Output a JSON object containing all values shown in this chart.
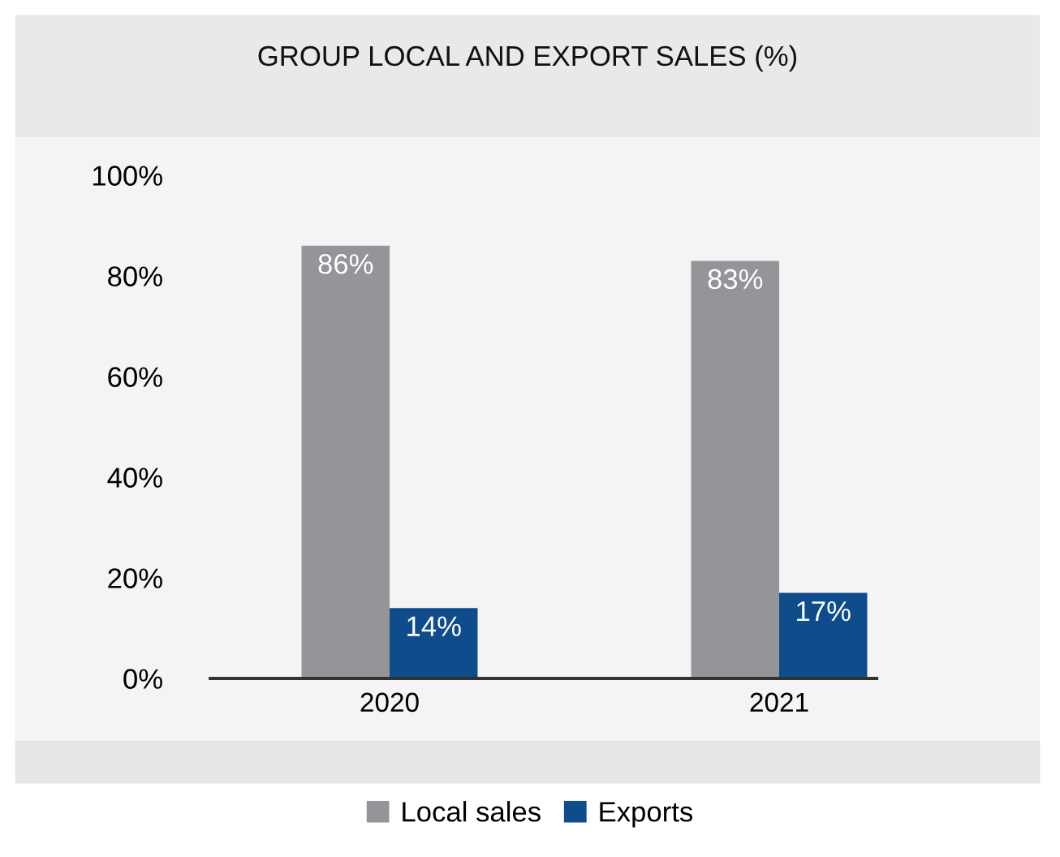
{
  "chart_data": {
    "type": "bar",
    "title": "GROUP LOCAL AND EXPORT SALES (%)",
    "categories": [
      "2020",
      "2021"
    ],
    "series": [
      {
        "name": "Local sales",
        "color": "#939598",
        "values": [
          86,
          83
        ],
        "value_labels": [
          "86%",
          "83%"
        ]
      },
      {
        "name": "Exports",
        "color": "#0f4c8c",
        "values": [
          14,
          17
        ],
        "value_labels": [
          "14%",
          "17%"
        ]
      }
    ],
    "ylim": [
      0,
      100
    ],
    "yticks": [
      {
        "value": 0,
        "label": "0%"
      },
      {
        "value": 20,
        "label": "20%"
      },
      {
        "value": 40,
        "label": "40%"
      },
      {
        "value": 60,
        "label": "60%"
      },
      {
        "value": 80,
        "label": "80%"
      },
      {
        "value": 100,
        "label": "100%"
      }
    ],
    "grid": false,
    "legend": "bottom"
  }
}
